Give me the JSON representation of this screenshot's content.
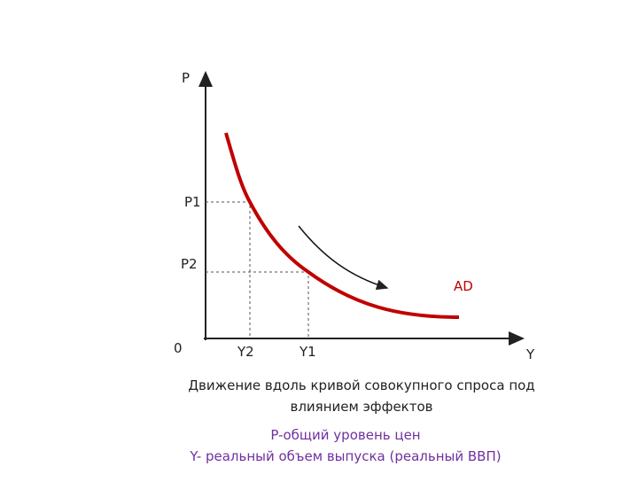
{
  "axes": {
    "y_label": "P",
    "x_label": "Y",
    "origin": "0"
  },
  "price_levels": [
    "P1",
    "P2"
  ],
  "output_levels": [
    "Y2",
    "Y1"
  ],
  "curve_label": "AD",
  "caption": [
    "Движение вдоль кривой совокупного спроса под",
    "влиянием эффектов"
  ],
  "legend": [
    "P-общий уровень цен",
    "Y- реальный объем выпуска (реальный ВВП)"
  ]
}
